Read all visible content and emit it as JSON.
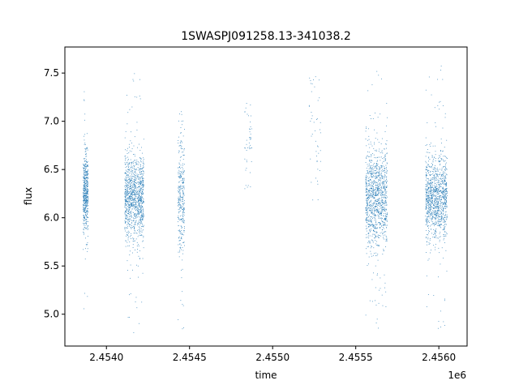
{
  "chart_data": {
    "type": "scatter",
    "title": "1SWASPJ091258.13-341038.2",
    "xlabel": "time",
    "ylabel": "flux",
    "x_offset_label": "1e6",
    "x_scale": 1000000,
    "xlim": [
      2453750,
      2456170
    ],
    "ylim": [
      4.67,
      7.77
    ],
    "x_ticks": [
      2454000,
      2454500,
      2455000,
      2455500,
      2456000
    ],
    "x_tick_labels": [
      "2.4540",
      "2.4545",
      "2.4550",
      "2.4555",
      "2.4560"
    ],
    "y_ticks": [
      5.0,
      5.5,
      6.0,
      6.5,
      7.0,
      7.5
    ],
    "y_tick_labels": [
      "5.0",
      "5.5",
      "6.0",
      "6.5",
      "7.0",
      "7.5"
    ],
    "grid": false,
    "legend": "none",
    "marker_color": "#1f77b4",
    "marker": "small dot",
    "clusters": [
      {
        "x_start": 2453860,
        "x_end": 2453890,
        "y_center": 6.25,
        "y_spread": 0.2,
        "y_min": 4.97,
        "y_max": 7.38,
        "density": "high"
      },
      {
        "x_start": 2454110,
        "x_end": 2454225,
        "y_center": 6.2,
        "y_spread": 0.22,
        "y_min": 4.8,
        "y_max": 7.5,
        "density": "very high"
      },
      {
        "x_start": 2454430,
        "x_end": 2454470,
        "y_center": 6.25,
        "y_spread": 0.3,
        "y_min": 4.8,
        "y_max": 7.6,
        "density": "medium"
      },
      {
        "x_start": 2454830,
        "x_end": 2454875,
        "y_center": 6.75,
        "y_spread": 0.3,
        "y_min": 5.95,
        "y_max": 7.45,
        "density": "sparse"
      },
      {
        "x_start": 2455220,
        "x_end": 2455290,
        "y_center": 6.9,
        "y_spread": 0.3,
        "y_min": 5.68,
        "y_max": 7.47,
        "density": "sparse"
      },
      {
        "x_start": 2455560,
        "x_end": 2455690,
        "y_center": 6.2,
        "y_spread": 0.25,
        "y_min": 4.8,
        "y_max": 7.55,
        "density": "very high"
      },
      {
        "x_start": 2455920,
        "x_end": 2456050,
        "y_center": 6.2,
        "y_spread": 0.22,
        "y_min": 4.82,
        "y_max": 7.62,
        "density": "very high"
      }
    ]
  }
}
